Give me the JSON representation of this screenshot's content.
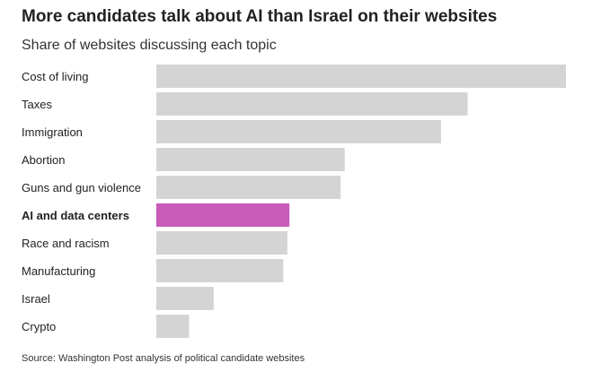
{
  "chart_data": {
    "type": "bar",
    "orientation": "horizontal",
    "title": "More candidates talk about AI than Israel on their websites",
    "subtitle": "Share of websites discussing each topic",
    "categories": [
      "Cost of living",
      "Taxes",
      "Immigration",
      "Abortion",
      "Guns and gun violence",
      "AI and data centers",
      "Race and racism",
      "Manufacturing",
      "Israel",
      "Crypto"
    ],
    "values": [
      100,
      76,
      69.5,
      46,
      45,
      32.5,
      32,
      31,
      14,
      8
    ],
    "highlight": "AI and data centers",
    "colors": {
      "bar": "#d4d4d4",
      "highlight": "#c95bbb",
      "label": "#222222"
    },
    "xlim": [
      0,
      100
    ],
    "grid": false,
    "legend": "none"
  },
  "source": "Source: Washington Post analysis of political candidate websites"
}
